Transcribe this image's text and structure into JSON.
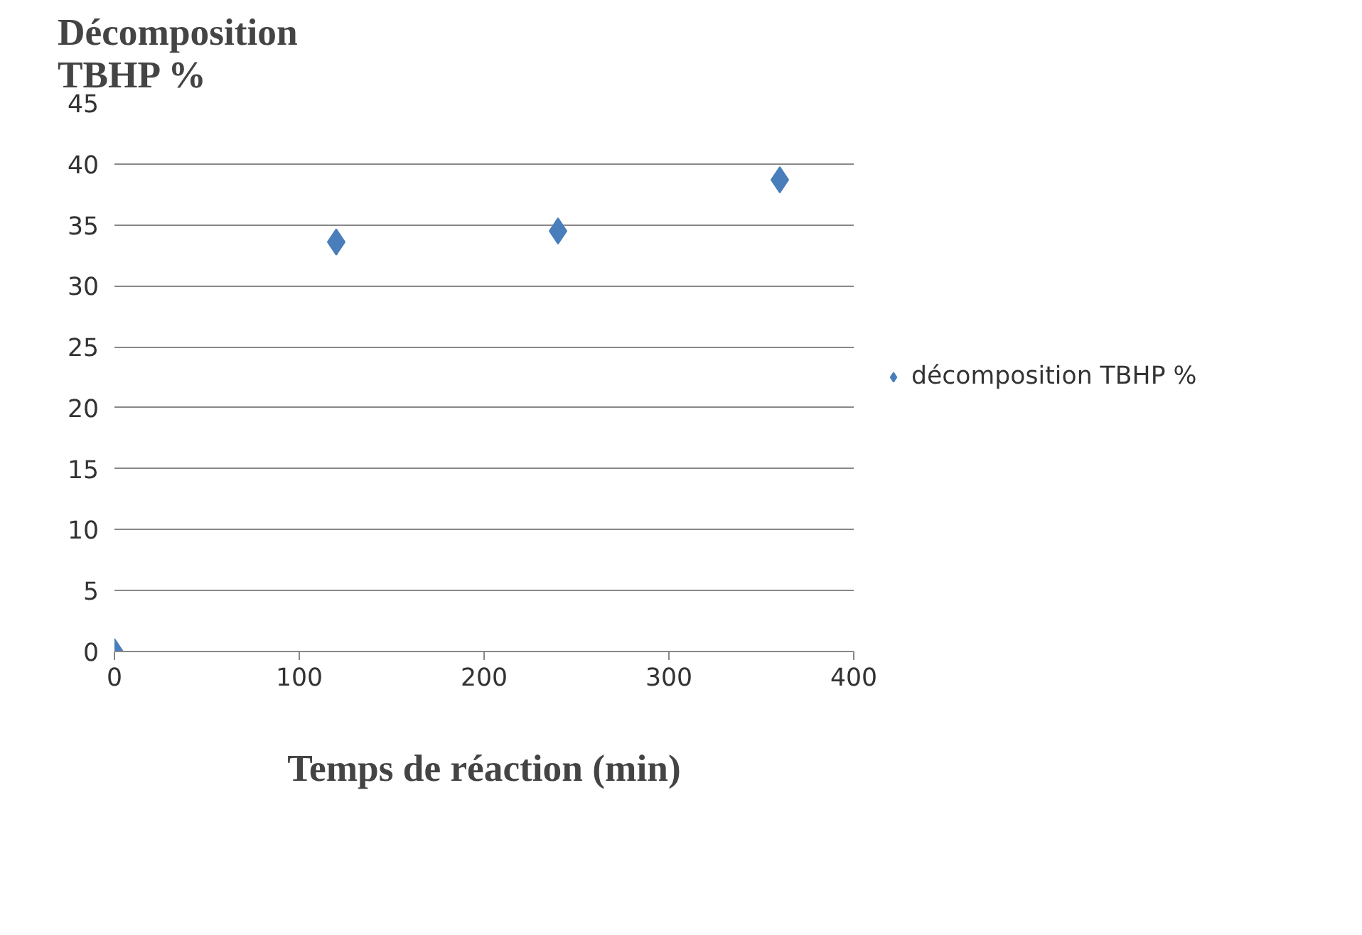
{
  "chart_data": {
    "type": "scatter",
    "title": "Décomposition\nTBHP %",
    "xlabel": "Temps de réaction (min)",
    "x": [
      0,
      120,
      240,
      360
    ],
    "series": [
      {
        "name": "décomposition TBHP %",
        "color": "#4a7ebb",
        "values": [
          0,
          33.6,
          34.5,
          38.7
        ]
      }
    ],
    "xlim": [
      0,
      400
    ],
    "xticks": [
      0,
      100,
      200,
      300,
      400
    ],
    "ylim": [
      0,
      45
    ],
    "yticks": [
      0,
      5,
      10,
      15,
      20,
      25,
      30,
      35,
      40,
      45
    ],
    "grid": "y",
    "legend": "right",
    "marker": "diamond"
  }
}
